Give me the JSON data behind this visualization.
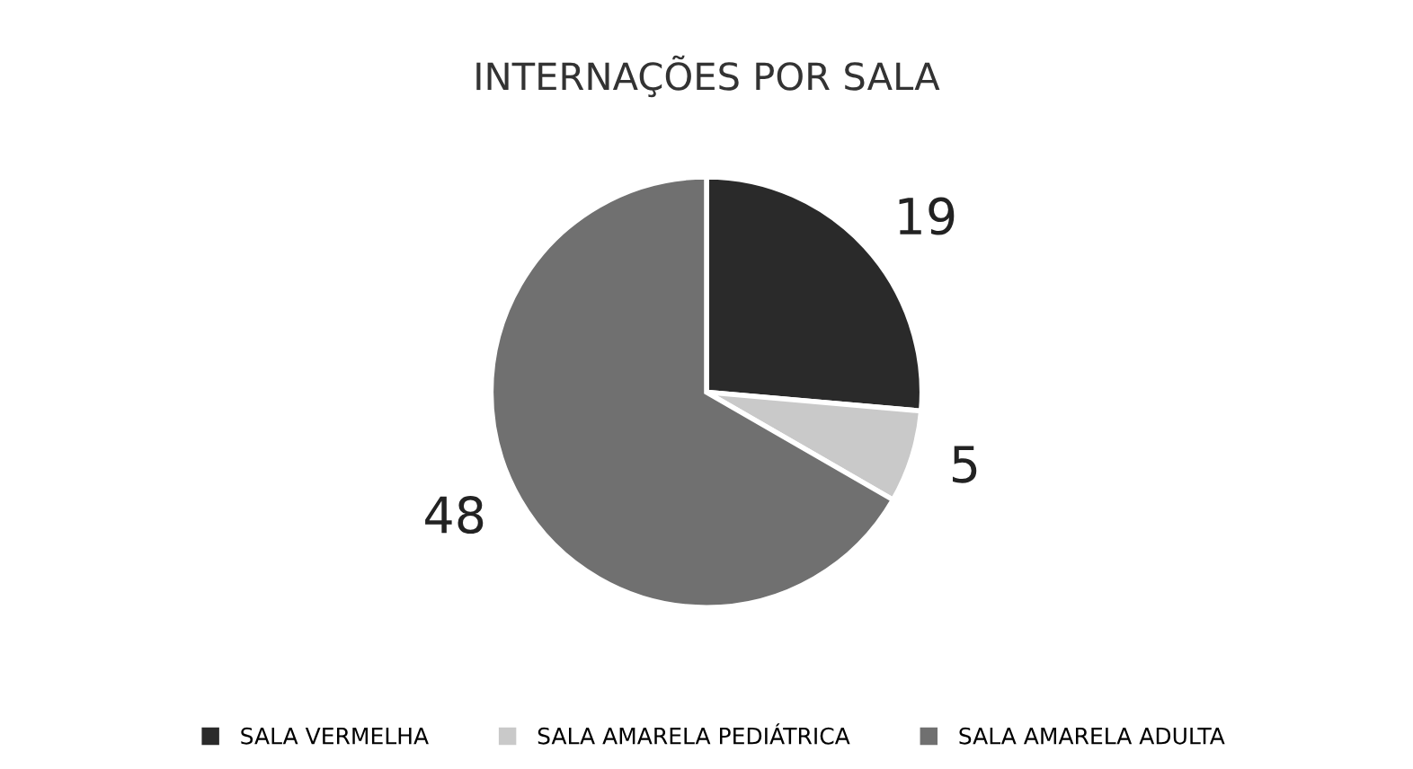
{
  "chart_data": {
    "type": "pie",
    "title": "INTERNAÇÕES POR SALA",
    "categories": [
      "SALA VERMELHA",
      "SALA AMARELA PEDIÁTRICA",
      "SALA AMARELA ADULTA"
    ],
    "values": [
      19,
      5,
      48
    ],
    "colors": [
      "#2a2a2a",
      "#c9c9c9",
      "#707070"
    ],
    "data_labels": true,
    "legend": "bottom"
  }
}
